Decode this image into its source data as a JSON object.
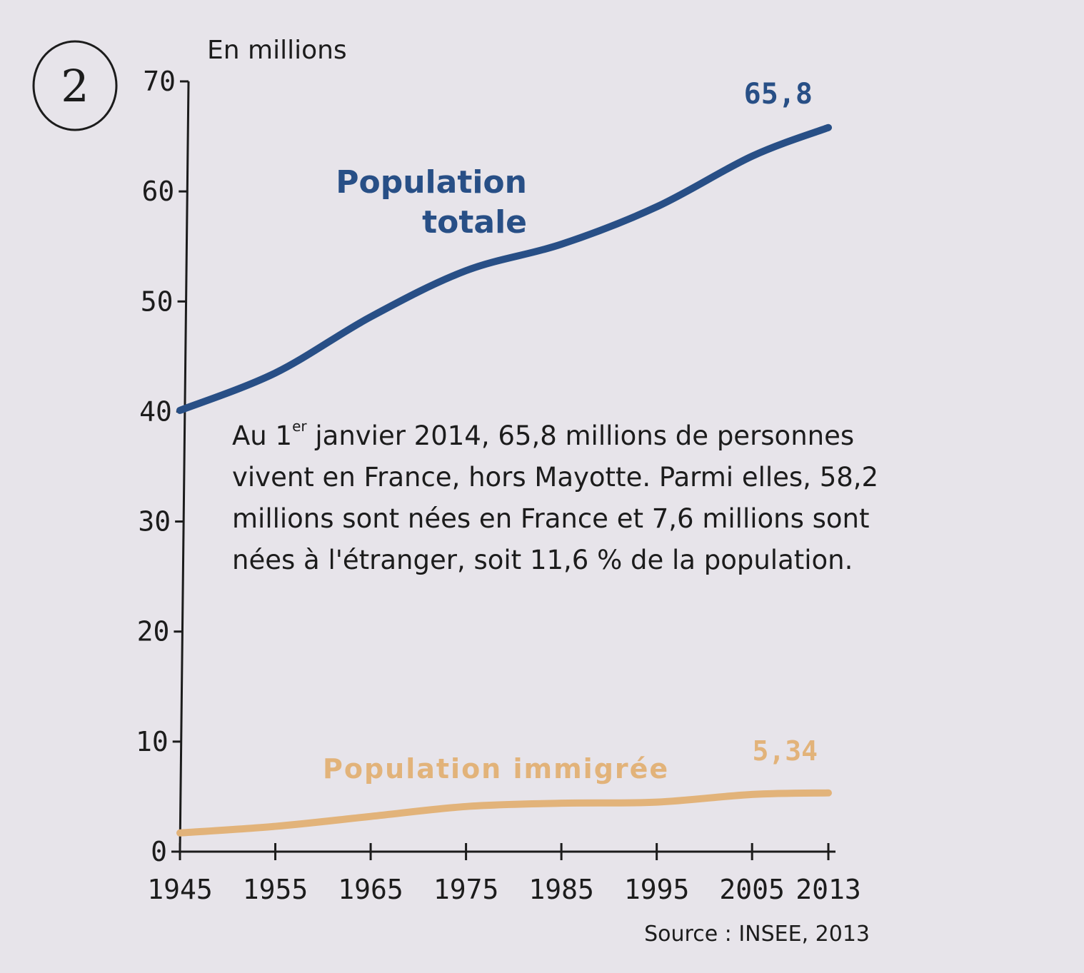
{
  "document_number": "2",
  "chart_data": {
    "type": "line",
    "unit_label": "En millions",
    "x": [
      1945,
      1955,
      1965,
      1975,
      1985,
      1995,
      2005,
      2013
    ],
    "x_tick_labels": [
      "1945",
      "1955",
      "1965",
      "1975",
      "1985",
      "1995",
      "2005",
      "2013"
    ],
    "y_ticks": [
      0,
      10,
      20,
      30,
      40,
      50,
      60,
      70
    ],
    "y_tick_labels": [
      "0",
      "10",
      "20",
      "30",
      "40",
      "50",
      "60",
      "70"
    ],
    "ylim": [
      0,
      70
    ],
    "xlim": [
      1945,
      2013
    ],
    "series": [
      {
        "name": "Population totale",
        "label_line1": "Population",
        "label_line2": "totale",
        "color": "#284f86",
        "values": [
          40.1,
          43.5,
          48.6,
          52.8,
          55.2,
          58.6,
          63.2,
          65.8
        ],
        "end_value_label": "65,8"
      },
      {
        "name": "Population immigrée",
        "label_line1": "Population immigrée",
        "color": "#e2b37a",
        "values": [
          1.7,
          2.3,
          3.2,
          4.1,
          4.4,
          4.5,
          5.2,
          5.34
        ],
        "end_value_label": "5,34"
      }
    ],
    "source": "Source : INSEE, 2013"
  },
  "annotation": {
    "text_before_sup": "Au 1",
    "sup": "er",
    "text_after_sup": " janvier 2014, 65,8 millions de personnes vivent en France, hors Mayotte. Parmi elles, 58,2 millions sont nées en France et 7,6 millions sont nées à l'étranger, soit 11,6 % de la population."
  }
}
